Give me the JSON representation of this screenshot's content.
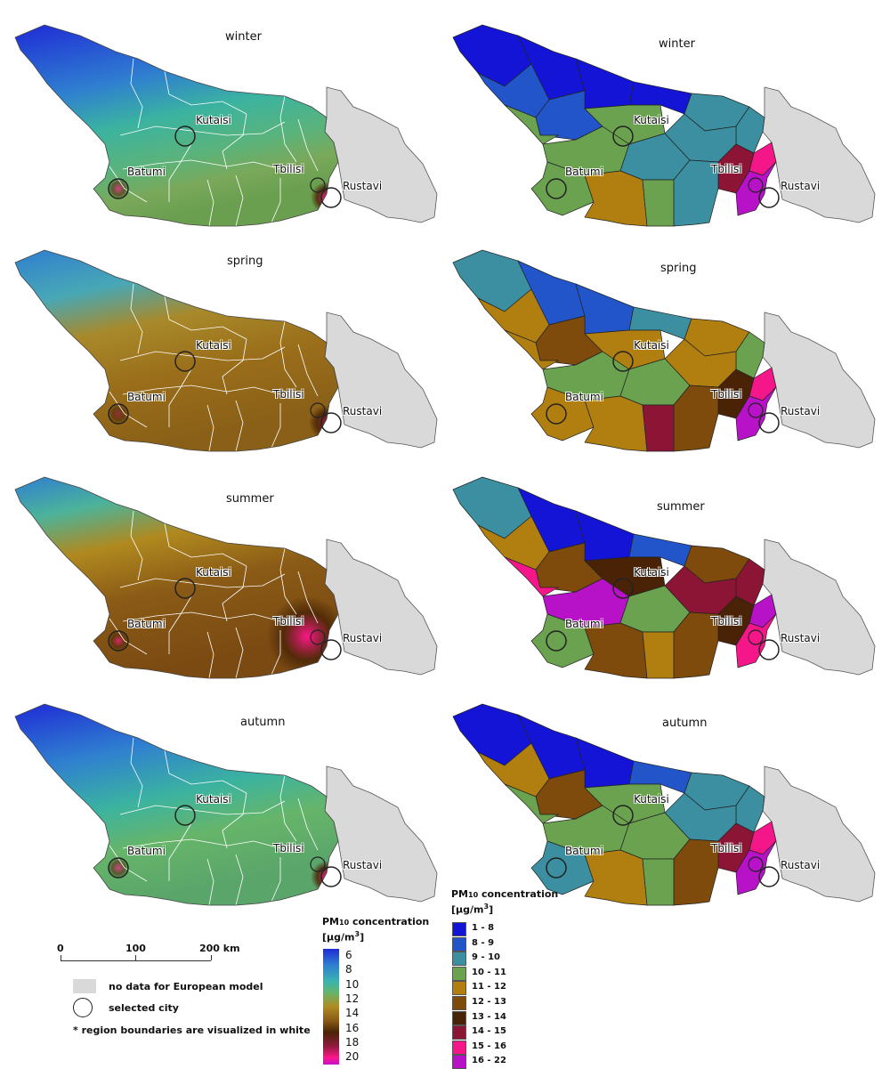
{
  "cities": {
    "kutaisi": "Kutaisi",
    "batumi": "Batumi",
    "tbilisi": "Tbilisi",
    "rustavi": "Rustavi"
  },
  "panels": [
    {
      "season": "winter",
      "style": "continuous"
    },
    {
      "season": "winter",
      "style": "classified"
    },
    {
      "season": "spring",
      "style": "continuous"
    },
    {
      "season": "spring",
      "style": "classified"
    },
    {
      "season": "summer",
      "style": "continuous"
    },
    {
      "season": "summer",
      "style": "classified"
    },
    {
      "season": "autumn",
      "style": "continuous"
    },
    {
      "season": "autumn",
      "style": "classified"
    }
  ],
  "continuous_legend": {
    "title_prefix": "PM",
    "title_sub": "10",
    "title_suffix": " concentration",
    "unit": "[μg/m",
    "unit_sup": "3",
    "unit_close": "]",
    "ticks": [
      "6",
      "8",
      "10",
      "12",
      "14",
      "16",
      "18",
      "20"
    ]
  },
  "classified_legend": {
    "title_prefix": "PM",
    "title_sub": "10",
    "title_suffix": " concentration",
    "unit": "[μg/m",
    "unit_sup": "3",
    "unit_close": "]",
    "classes": [
      {
        "label": "1 - 8",
        "color": "#1414d6"
      },
      {
        "label": "8 - 9",
        "color": "#2255c9"
      },
      {
        "label": "9 - 10",
        "color": "#3b8fa0"
      },
      {
        "label": "10 - 11",
        "color": "#6aa24f"
      },
      {
        "label": "11 - 12",
        "color": "#b07f10"
      },
      {
        "label": "12 - 13",
        "color": "#7f4b0c"
      },
      {
        "label": "13 - 14",
        "color": "#4a2306"
      },
      {
        "label": "14 - 15",
        "color": "#8c1535"
      },
      {
        "label": "15 - 16",
        "color": "#f5168a"
      },
      {
        "label": "16 - 22",
        "color": "#b812c9"
      }
    ]
  },
  "scale_bar": {
    "labels": [
      "0",
      "100",
      "200 km"
    ]
  },
  "legend_items": {
    "no_data": "no data for European model",
    "selected_city": "selected city",
    "footnote": "* region boundaries are visualized in white"
  },
  "colors": {
    "no_data": "#d9d9d9",
    "boundary_continuous": "#ffffff",
    "boundary_classified": "#222222"
  }
}
